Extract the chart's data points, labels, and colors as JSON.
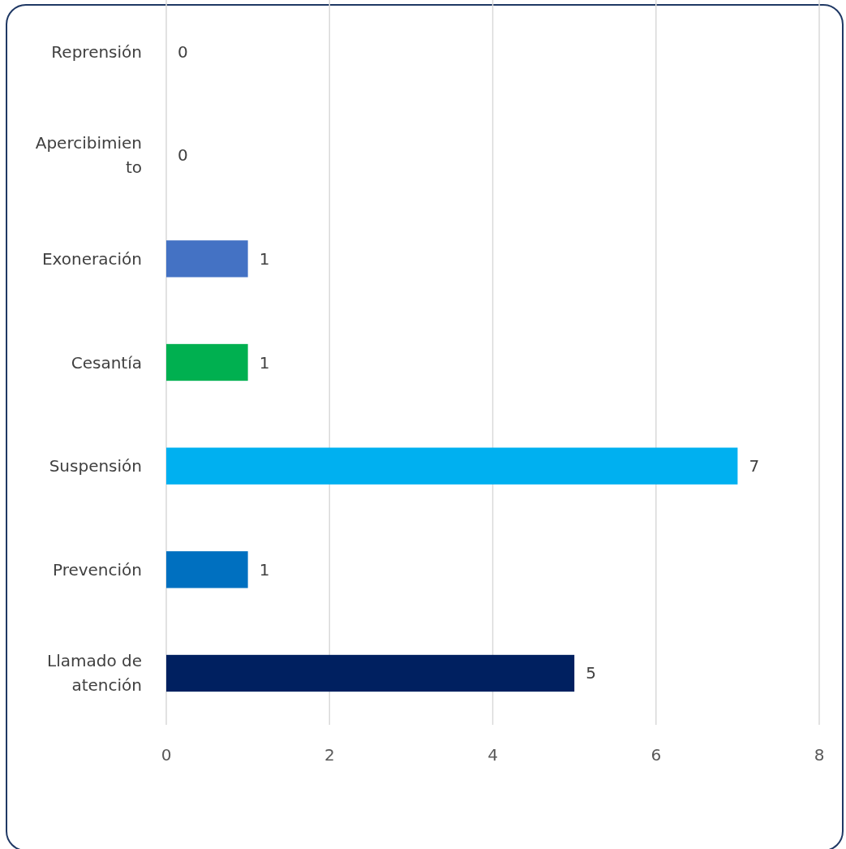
{
  "chart_data": {
    "type": "bar",
    "orientation": "horizontal",
    "categories": [
      "Reprensión",
      "Apercibimiento",
      "Exoneración",
      "Cesantía",
      "Suspensión",
      "Prevención",
      "Llamado de atención"
    ],
    "values": [
      0,
      0,
      1,
      1,
      7,
      1,
      5
    ],
    "colors": [
      "#a5a5a5",
      "#ffc000",
      "#4472c4",
      "#00b050",
      "#00b0f0",
      "#0070c0",
      "#002060"
    ],
    "xlim": [
      0,
      8
    ],
    "xticks": [
      0,
      2,
      4,
      6,
      8
    ],
    "grid": "x",
    "data_labels": true
  }
}
